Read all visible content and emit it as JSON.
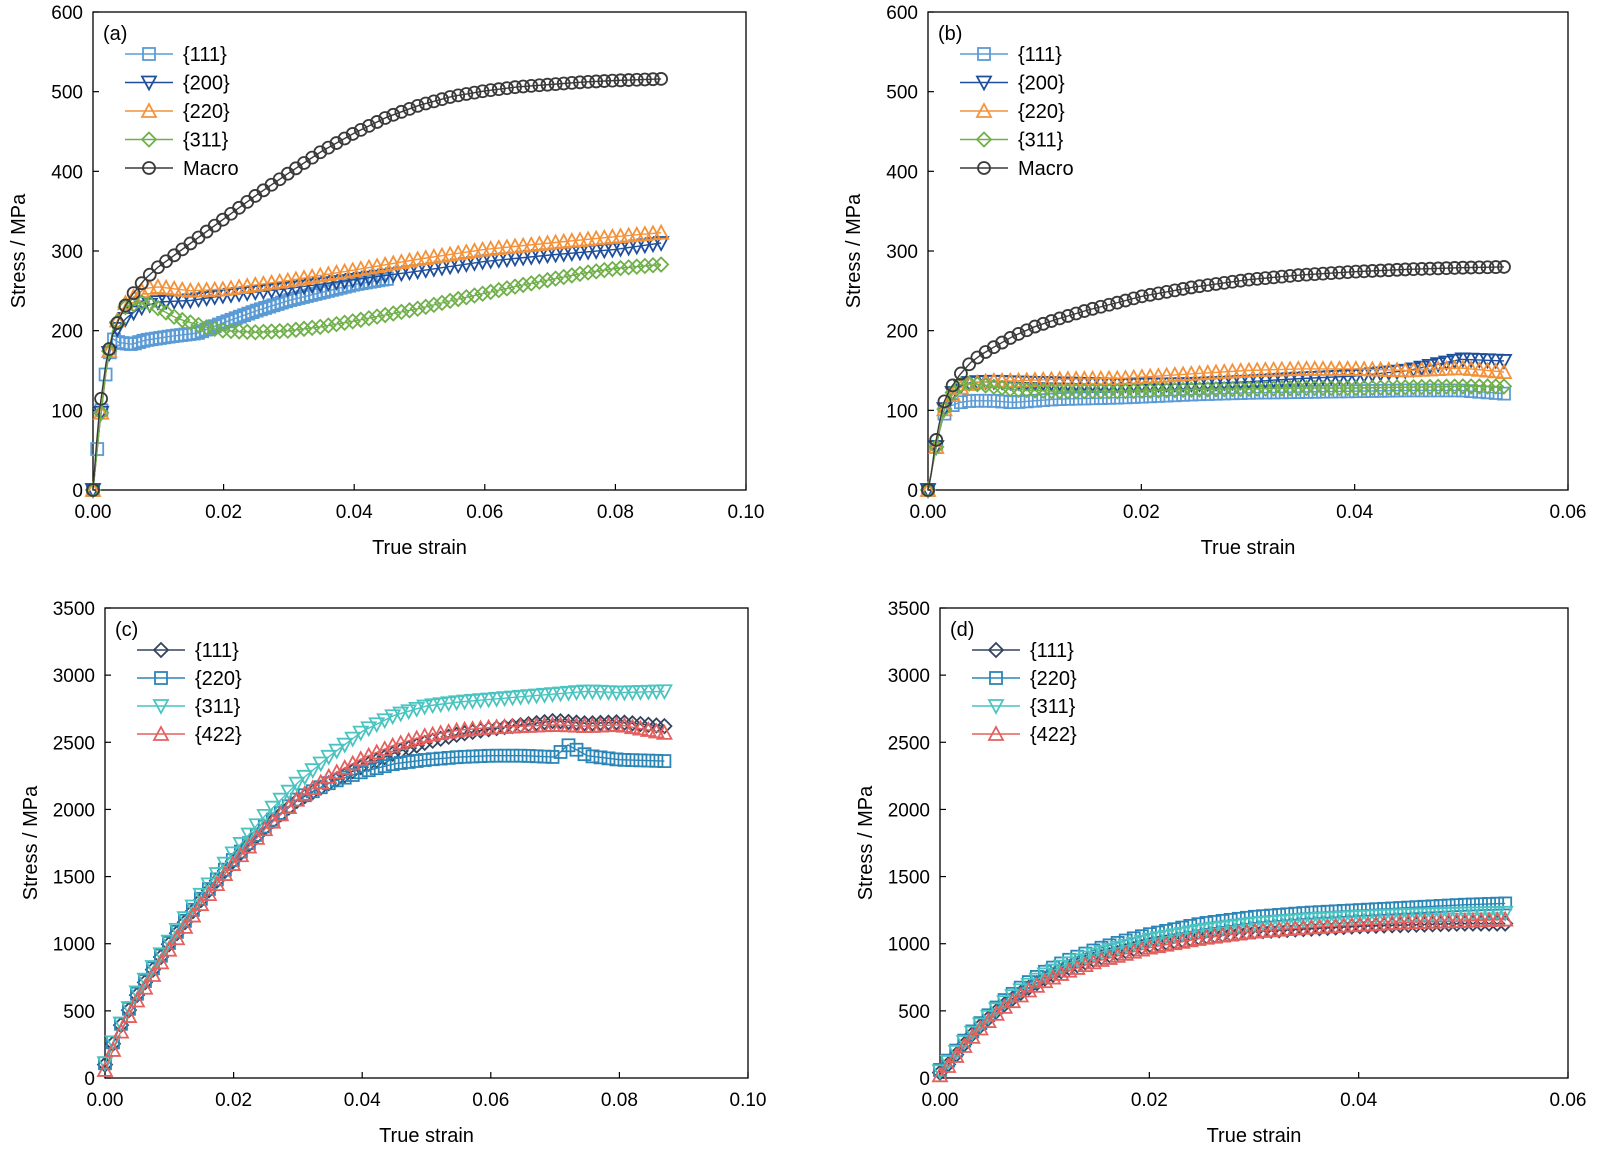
{
  "colors": {
    "dark_gray": "#3a3a3a",
    "light_blue": "#5b9bd5",
    "navy": "#1f4e9a",
    "orange": "#f4923a",
    "green": "#70b04a",
    "slate": "#34445f",
    "steel": "#2c86b5",
    "teal": "#49c4c0",
    "red": "#e3605e"
  },
  "chart_data": [
    {
      "panel_label": "(a)",
      "type": "scatter",
      "xlabel": "True strain",
      "ylabel": "Stress / MPa",
      "xlim": [
        0,
        0.1
      ],
      "ylim": [
        0,
        600
      ],
      "xticks": [
        "0.00",
        "0.02",
        "0.04",
        "0.06",
        "0.08",
        "0.10"
      ],
      "yticks": [
        "0",
        "100",
        "200",
        "300",
        "400",
        "500",
        "600"
      ],
      "legend_position": "top-left",
      "series": [
        {
          "name": "{111}",
          "marker": "square",
          "color": "light_blue",
          "x": [
            0,
            0.001,
            0.002,
            0.003,
            0.004,
            0.006,
            0.008,
            0.012,
            0.016,
            0.02,
            0.025,
            0.03,
            0.035,
            0.04,
            0.045
          ],
          "y": [
            0,
            80,
            150,
            190,
            185,
            183,
            188,
            193,
            197,
            210,
            225,
            238,
            248,
            258,
            265
          ]
        },
        {
          "name": "{200}",
          "marker": "triangle-down",
          "color": "navy",
          "x": [
            0,
            0.001,
            0.002,
            0.003,
            0.005,
            0.007,
            0.01,
            0.015,
            0.02,
            0.03,
            0.04,
            0.05,
            0.06,
            0.07,
            0.08,
            0.087
          ],
          "y": [
            0,
            80,
            150,
            195,
            215,
            228,
            236,
            238,
            244,
            253,
            264,
            275,
            287,
            295,
            302,
            310
          ]
        },
        {
          "name": "{220}",
          "marker": "triangle-up",
          "color": "orange",
          "x": [
            0,
            0.001,
            0.002,
            0.003,
            0.005,
            0.008,
            0.01,
            0.015,
            0.02,
            0.03,
            0.04,
            0.05,
            0.06,
            0.07,
            0.08,
            0.087
          ],
          "y": [
            0,
            80,
            150,
            200,
            235,
            253,
            255,
            250,
            252,
            263,
            276,
            290,
            302,
            310,
            318,
            323
          ]
        },
        {
          "name": "{311}",
          "marker": "diamond",
          "color": "green",
          "x": [
            0,
            0.001,
            0.002,
            0.003,
            0.005,
            0.008,
            0.01,
            0.013,
            0.017,
            0.02,
            0.025,
            0.03,
            0.035,
            0.04,
            0.045,
            0.05,
            0.055,
            0.06,
            0.065,
            0.07,
            0.075,
            0.08,
            0.087
          ],
          "y": [
            0,
            80,
            150,
            200,
            230,
            237,
            228,
            215,
            205,
            200,
            198,
            200,
            205,
            212,
            220,
            228,
            238,
            247,
            256,
            264,
            272,
            278,
            283
          ]
        },
        {
          "name": "Macro",
          "marker": "circle",
          "color": "dark_gray",
          "x": [
            0,
            0.0005,
            0.001,
            0.002,
            0.003,
            0.004,
            0.005,
            0.006,
            0.008,
            0.01,
            0.012,
            0.015,
            0.02,
            0.025,
            0.03,
            0.035,
            0.04,
            0.045,
            0.05,
            0.055,
            0.06,
            0.065,
            0.07,
            0.075,
            0.08,
            0.087
          ],
          "y": [
            0,
            55,
            100,
            160,
            195,
            215,
            232,
            245,
            265,
            280,
            292,
            310,
            340,
            370,
            398,
            425,
            448,
            468,
            483,
            494,
            501,
            506,
            509,
            512,
            514,
            516
          ]
        }
      ]
    },
    {
      "panel_label": "(b)",
      "type": "scatter",
      "xlabel": "True strain",
      "ylabel": "Stress / MPa",
      "xlim": [
        0,
        0.06
      ],
      "ylim": [
        0,
        600
      ],
      "xticks": [
        "0.00",
        "0.02",
        "0.04",
        "0.06"
      ],
      "yticks": [
        "0",
        "100",
        "200",
        "300",
        "400",
        "500",
        "600"
      ],
      "legend_position": "top-left",
      "series": [
        {
          "name": "{111}",
          "marker": "square",
          "color": "light_blue",
          "x": [
            0,
            0.0005,
            0.001,
            0.0015,
            0.002,
            0.003,
            0.004,
            0.006,
            0.008,
            0.012,
            0.018,
            0.025,
            0.03,
            0.035,
            0.04,
            0.045,
            0.05,
            0.054
          ],
          "y": [
            0,
            35,
            70,
            95,
            105,
            110,
            112,
            112,
            110,
            114,
            116,
            120,
            122,
            123,
            124,
            125,
            125,
            121
          ]
        },
        {
          "name": "{200}",
          "marker": "triangle-down",
          "color": "navy",
          "x": [
            0,
            0.0005,
            0.001,
            0.0015,
            0.002,
            0.003,
            0.004,
            0.006,
            0.008,
            0.012,
            0.018,
            0.025,
            0.03,
            0.035,
            0.04,
            0.045,
            0.05,
            0.054
          ],
          "y": [
            0,
            35,
            70,
            100,
            118,
            130,
            135,
            136,
            135,
            134,
            132,
            133,
            136,
            140,
            143,
            150,
            164,
            162
          ]
        },
        {
          "name": "{220}",
          "marker": "triangle-up",
          "color": "orange",
          "x": [
            0,
            0.0005,
            0.001,
            0.0015,
            0.002,
            0.003,
            0.004,
            0.006,
            0.008,
            0.012,
            0.018,
            0.025,
            0.03,
            0.035,
            0.04,
            0.045,
            0.05,
            0.054
          ],
          "y": [
            0,
            35,
            70,
            100,
            115,
            128,
            134,
            137,
            137,
            139,
            140,
            146,
            150,
            152,
            152,
            150,
            153,
            148
          ]
        },
        {
          "name": "{311}",
          "marker": "diamond",
          "color": "green",
          "x": [
            0,
            0.0005,
            0.001,
            0.0015,
            0.002,
            0.003,
            0.004,
            0.006,
            0.008,
            0.012,
            0.018,
            0.025,
            0.03,
            0.035,
            0.04,
            0.045,
            0.05,
            0.054
          ],
          "y": [
            0,
            35,
            70,
            100,
            118,
            132,
            134,
            130,
            126,
            124,
            124,
            126,
            127,
            128,
            128,
            129,
            130,
            130
          ]
        },
        {
          "name": "Macro",
          "marker": "circle",
          "color": "dark_gray",
          "x": [
            0,
            0.0003,
            0.0006,
            0.001,
            0.0015,
            0.002,
            0.003,
            0.004,
            0.005,
            0.006,
            0.008,
            0.01,
            0.012,
            0.015,
            0.018,
            0.02,
            0.025,
            0.03,
            0.035,
            0.04,
            0.045,
            0.05,
            0.054
          ],
          "y": [
            0,
            20,
            50,
            80,
            110,
            125,
            145,
            160,
            170,
            178,
            193,
            205,
            214,
            226,
            236,
            243,
            255,
            264,
            270,
            274,
            277,
            279,
            280
          ]
        }
      ]
    },
    {
      "panel_label": "(c)",
      "type": "scatter",
      "xlabel": "True strain",
      "ylabel": "Stress / MPa",
      "xlim": [
        0,
        0.1
      ],
      "ylim": [
        0,
        3500
      ],
      "xticks": [
        "0.00",
        "0.02",
        "0.04",
        "0.06",
        "0.08",
        "0.10"
      ],
      "yticks": [
        "0",
        "500",
        "1000",
        "1500",
        "2000",
        "2500",
        "3000",
        "3500"
      ],
      "legend_position": "top-left",
      "series": [
        {
          "name": "{111}",
          "marker": "diamond",
          "color": "slate",
          "x": [
            0,
            0.002,
            0.005,
            0.01,
            0.015,
            0.02,
            0.025,
            0.03,
            0.035,
            0.04,
            0.045,
            0.05,
            0.055,
            0.06,
            0.065,
            0.07,
            0.075,
            0.08,
            0.087
          ],
          "y": [
            100,
            350,
            620,
            1000,
            1330,
            1620,
            1870,
            2070,
            2200,
            2320,
            2420,
            2500,
            2560,
            2600,
            2630,
            2660,
            2640,
            2650,
            2620
          ]
        },
        {
          "name": "{220}",
          "marker": "square",
          "color": "steel",
          "x": [
            0,
            0.002,
            0.005,
            0.01,
            0.015,
            0.02,
            0.025,
            0.03,
            0.035,
            0.04,
            0.045,
            0.05,
            0.055,
            0.06,
            0.065,
            0.07,
            0.072,
            0.075,
            0.08,
            0.087
          ],
          "y": [
            110,
            360,
            630,
            1010,
            1340,
            1630,
            1880,
            2080,
            2200,
            2280,
            2340,
            2370,
            2390,
            2400,
            2400,
            2390,
            2480,
            2400,
            2370,
            2360
          ]
        },
        {
          "name": "{311}",
          "marker": "triangle-down",
          "color": "teal",
          "x": [
            0,
            0.002,
            0.005,
            0.01,
            0.015,
            0.02,
            0.025,
            0.03,
            0.035,
            0.04,
            0.045,
            0.05,
            0.055,
            0.06,
            0.065,
            0.07,
            0.075,
            0.08,
            0.087
          ],
          "y": [
            110,
            360,
            640,
            1020,
            1370,
            1680,
            1960,
            2200,
            2400,
            2580,
            2700,
            2770,
            2800,
            2820,
            2840,
            2860,
            2880,
            2870,
            2880
          ]
        },
        {
          "name": "{422}",
          "marker": "triangle-up",
          "color": "red",
          "x": [
            0,
            0.002,
            0.005,
            0.01,
            0.015,
            0.02,
            0.025,
            0.03,
            0.035,
            0.04,
            0.045,
            0.05,
            0.055,
            0.06,
            0.065,
            0.07,
            0.075,
            0.08,
            0.087
          ],
          "y": [
            60,
            300,
            580,
            960,
            1300,
            1600,
            1860,
            2080,
            2250,
            2380,
            2480,
            2550,
            2590,
            2610,
            2620,
            2630,
            2620,
            2630,
            2570
          ]
        }
      ]
    },
    {
      "panel_label": "(d)",
      "type": "scatter",
      "xlabel": "True strain",
      "ylabel": "Stress / MPa",
      "xlim": [
        0,
        0.06
      ],
      "ylim": [
        0,
        3500
      ],
      "xticks": [
        "0.00",
        "0.02",
        "0.04",
        "0.06"
      ],
      "yticks": [
        "0",
        "500",
        "1000",
        "1500",
        "2000",
        "2500",
        "3000",
        "3500"
      ],
      "legend_position": "top-left",
      "series": [
        {
          "name": "{111}",
          "marker": "diamond",
          "color": "slate",
          "x": [
            0,
            0.001,
            0.002,
            0.003,
            0.004,
            0.006,
            0.008,
            0.01,
            0.012,
            0.015,
            0.018,
            0.02,
            0.025,
            0.03,
            0.035,
            0.04,
            0.045,
            0.05,
            0.054
          ],
          "y": [
            40,
            120,
            220,
            320,
            400,
            540,
            650,
            740,
            810,
            890,
            950,
            990,
            1050,
            1090,
            1110,
            1130,
            1140,
            1150,
            1150
          ]
        },
        {
          "name": "{220}",
          "marker": "square",
          "color": "steel",
          "x": [
            0,
            0.001,
            0.002,
            0.003,
            0.004,
            0.006,
            0.008,
            0.01,
            0.012,
            0.015,
            0.018,
            0.02,
            0.025,
            0.03,
            0.035,
            0.04,
            0.045,
            0.05,
            0.054
          ],
          "y": [
            60,
            150,
            250,
            340,
            420,
            570,
            690,
            790,
            870,
            960,
            1030,
            1070,
            1150,
            1200,
            1230,
            1250,
            1270,
            1290,
            1300
          ]
        },
        {
          "name": "{311}",
          "marker": "triangle-down",
          "color": "teal",
          "x": [
            0,
            0.001,
            0.002,
            0.003,
            0.004,
            0.006,
            0.008,
            0.01,
            0.012,
            0.015,
            0.018,
            0.02,
            0.025,
            0.03,
            0.035,
            0.04,
            0.045,
            0.05,
            0.054
          ],
          "y": [
            50,
            140,
            240,
            330,
            410,
            555,
            670,
            770,
            845,
            930,
            990,
            1030,
            1100,
            1150,
            1180,
            1200,
            1215,
            1225,
            1230
          ]
        },
        {
          "name": "{422}",
          "marker": "triangle-up",
          "color": "red",
          "x": [
            0,
            0.001,
            0.002,
            0.003,
            0.004,
            0.006,
            0.008,
            0.01,
            0.012,
            0.015,
            0.018,
            0.02,
            0.025,
            0.03,
            0.035,
            0.04,
            0.045,
            0.05,
            0.054
          ],
          "y": [
            20,
            110,
            210,
            300,
            380,
            520,
            630,
            720,
            790,
            870,
            930,
            970,
            1040,
            1090,
            1120,
            1140,
            1160,
            1170,
            1180
          ]
        }
      ]
    }
  ]
}
